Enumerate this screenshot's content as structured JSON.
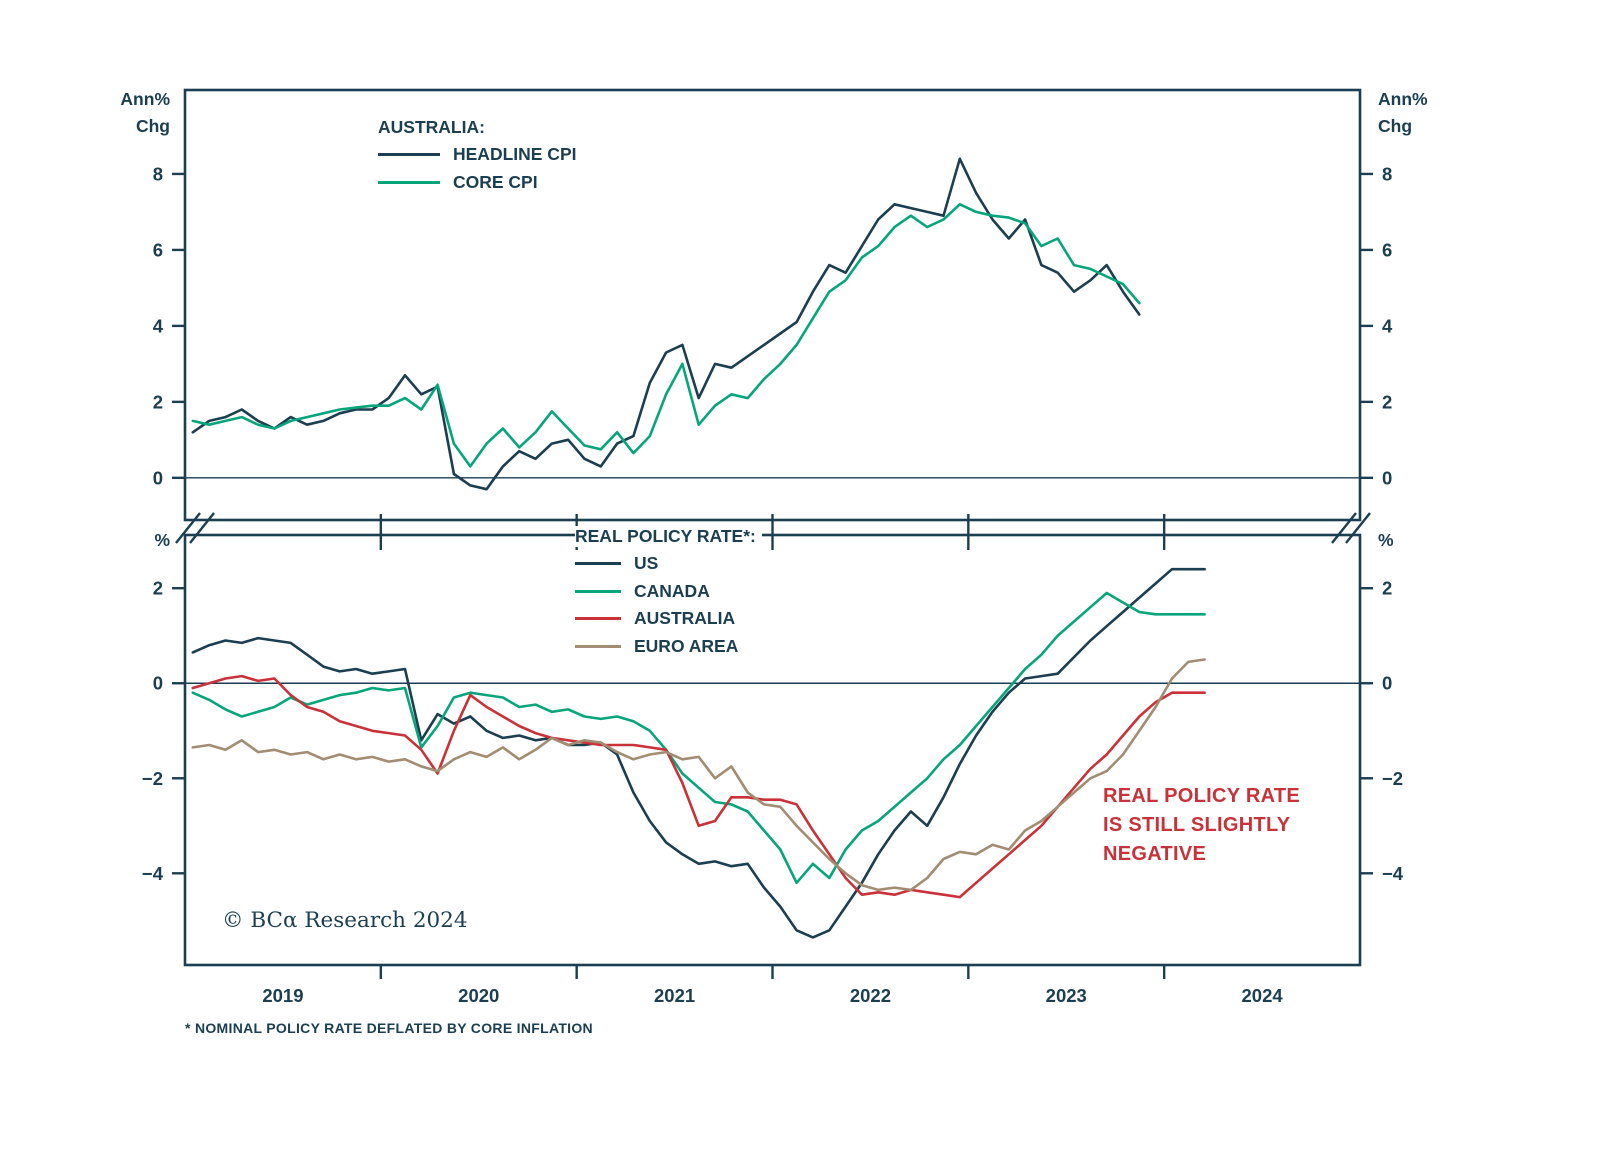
{
  "meta": {
    "copyright": "© BCα Research 2024",
    "footnote": "* NOMINAL POLICY RATE DEFLATED BY CORE INFLATION"
  },
  "colors": {
    "navy": "#1B3E50",
    "green": "#07A57C",
    "red": "#C93238",
    "tan": "#A28C72"
  },
  "labels": {
    "ann_line1": "Ann%",
    "ann_line2": "Chg",
    "pct": "%"
  },
  "x_axis": {
    "xlim": [
      2019,
      2025
    ],
    "tick_years": [
      2020,
      2021,
      2022,
      2023,
      2024
    ],
    "label_years": [
      2019,
      2020,
      2021,
      2022,
      2023,
      2024
    ],
    "labels": [
      "2019",
      "2020",
      "2021",
      "2022",
      "2023",
      "2024"
    ]
  },
  "chart_data": [
    {
      "type": "line",
      "title": "AUSTRALIA:",
      "y_axis_label": "Ann% Chg",
      "ylim": [
        -1.11,
        10.21
      ],
      "y_ticks": [
        0,
        2,
        4,
        6,
        8
      ],
      "x_start": 2019.04,
      "x_step": 0.08333,
      "x_unit": "monthly, year-over-year % change",
      "legend_position": "inside-top-left",
      "series": [
        {
          "name": "HEADLINE CPI",
          "color_key": "navy",
          "values": [
            1.2,
            1.5,
            1.6,
            1.8,
            1.5,
            1.3,
            1.6,
            1.4,
            1.5,
            1.7,
            1.8,
            1.8,
            2.1,
            2.7,
            2.2,
            2.4,
            0.1,
            -0.2,
            -0.3,
            0.3,
            0.7,
            0.5,
            0.9,
            1.0,
            0.5,
            0.3,
            0.9,
            1.1,
            2.5,
            3.3,
            3.5,
            2.1,
            3.0,
            2.9,
            3.2,
            3.5,
            3.8,
            4.1,
            4.9,
            5.6,
            5.4,
            6.1,
            6.8,
            7.2,
            7.1,
            7.0,
            6.9,
            8.4,
            7.5,
            6.8,
            6.3,
            6.8,
            5.6,
            5.4,
            4.9,
            5.2,
            5.6,
            4.9,
            4.3
          ]
        },
        {
          "name": "CORE CPI",
          "color_key": "green",
          "values": [
            1.5,
            1.4,
            1.5,
            1.6,
            1.4,
            1.3,
            1.5,
            1.6,
            1.7,
            1.8,
            1.85,
            1.9,
            1.9,
            2.1,
            1.8,
            2.45,
            0.9,
            0.3,
            0.9,
            1.3,
            0.8,
            1.2,
            1.75,
            1.3,
            0.85,
            0.75,
            1.2,
            0.65,
            1.1,
            2.2,
            3.0,
            1.4,
            1.9,
            2.2,
            2.1,
            2.6,
            3.0,
            3.5,
            4.2,
            4.9,
            5.2,
            5.8,
            6.1,
            6.6,
            6.9,
            6.6,
            6.8,
            7.2,
            7.0,
            6.9,
            6.85,
            6.7,
            6.1,
            6.3,
            5.6,
            5.5,
            5.3,
            5.1,
            4.6
          ]
        }
      ]
    },
    {
      "type": "line",
      "title": "REAL POLICY RATE*:",
      "y_axis_label": "%",
      "ylim": [
        -5.93,
        3.12
      ],
      "y_ticks": [
        -4,
        -2,
        0,
        2
      ],
      "x_start": 2019.04,
      "x_step": 0.08333,
      "x_unit": "monthly, percent",
      "legend_position": "inside-top-left",
      "annotation_lines": [
        "REAL POLICY RATE",
        "IS STILL SLIGHTLY",
        "NEGATIVE"
      ],
      "series": [
        {
          "name": "US",
          "color_key": "navy",
          "values": [
            0.65,
            0.8,
            0.9,
            0.85,
            0.95,
            0.9,
            0.85,
            0.6,
            0.35,
            0.25,
            0.3,
            0.2,
            0.25,
            0.3,
            -1.2,
            -0.65,
            -0.85,
            -0.7,
            -1.0,
            -1.15,
            -1.1,
            -1.2,
            -1.15,
            -1.3,
            -1.3,
            -1.25,
            -1.5,
            -2.3,
            -2.9,
            -3.35,
            -3.6,
            -3.8,
            -3.75,
            -3.85,
            -3.8,
            -4.3,
            -4.7,
            -5.2,
            -5.35,
            -5.2,
            -4.7,
            -4.2,
            -3.6,
            -3.1,
            -2.7,
            -3.0,
            -2.4,
            -1.7,
            -1.1,
            -0.6,
            -0.2,
            0.1,
            0.15,
            0.2,
            0.55,
            0.9,
            1.2,
            1.5,
            1.8,
            2.1,
            2.4,
            2.4,
            2.4
          ]
        },
        {
          "name": "CANADA",
          "color_key": "green",
          "values": [
            -0.2,
            -0.35,
            -0.55,
            -0.7,
            -0.6,
            -0.5,
            -0.3,
            -0.45,
            -0.35,
            -0.25,
            -0.2,
            -0.1,
            -0.15,
            -0.1,
            -1.35,
            -0.9,
            -0.3,
            -0.2,
            -0.25,
            -0.3,
            -0.5,
            -0.45,
            -0.6,
            -0.55,
            -0.7,
            -0.75,
            -0.7,
            -0.8,
            -1.0,
            -1.4,
            -1.9,
            -2.2,
            -2.5,
            -2.55,
            -2.7,
            -3.1,
            -3.5,
            -4.2,
            -3.8,
            -4.1,
            -3.5,
            -3.1,
            -2.9,
            -2.6,
            -2.3,
            -2.0,
            -1.6,
            -1.3,
            -0.9,
            -0.5,
            -0.1,
            0.3,
            0.6,
            1.0,
            1.3,
            1.6,
            1.9,
            1.7,
            1.5,
            1.45,
            1.45,
            1.45,
            1.45
          ]
        },
        {
          "name": "AUSTRALIA",
          "color_key": "red",
          "values": [
            -0.1,
            0.0,
            0.1,
            0.15,
            0.05,
            0.1,
            -0.25,
            -0.5,
            -0.6,
            -0.8,
            -0.9,
            -1.0,
            -1.05,
            -1.1,
            -1.4,
            -1.9,
            -1.0,
            -0.25,
            -0.5,
            -0.7,
            -0.9,
            -1.05,
            -1.15,
            -1.2,
            -1.25,
            -1.3,
            -1.3,
            -1.3,
            -1.35,
            -1.4,
            -2.1,
            -3.0,
            -2.9,
            -2.4,
            -2.4,
            -2.45,
            -2.45,
            -2.55,
            -3.1,
            -3.6,
            -4.1,
            -4.45,
            -4.4,
            -4.45,
            -4.35,
            -4.4,
            -4.45,
            -4.5,
            -4.2,
            -3.9,
            -3.6,
            -3.3,
            -3.0,
            -2.6,
            -2.2,
            -1.8,
            -1.5,
            -1.1,
            -0.7,
            -0.4,
            -0.2,
            -0.2,
            -0.2
          ]
        },
        {
          "name": "EURO AREA",
          "color_key": "tan",
          "values": [
            -1.35,
            -1.3,
            -1.4,
            -1.2,
            -1.45,
            -1.4,
            -1.5,
            -1.45,
            -1.6,
            -1.5,
            -1.6,
            -1.55,
            -1.65,
            -1.6,
            -1.75,
            -1.85,
            -1.6,
            -1.45,
            -1.55,
            -1.35,
            -1.6,
            -1.4,
            -1.15,
            -1.3,
            -1.2,
            -1.25,
            -1.45,
            -1.6,
            -1.5,
            -1.45,
            -1.6,
            -1.55,
            -2.0,
            -1.75,
            -2.3,
            -2.55,
            -2.6,
            -3.0,
            -3.35,
            -3.7,
            -4.0,
            -4.25,
            -4.35,
            -4.3,
            -4.35,
            -4.1,
            -3.7,
            -3.55,
            -3.6,
            -3.4,
            -3.5,
            -3.1,
            -2.9,
            -2.6,
            -2.3,
            -2.0,
            -1.85,
            -1.5,
            -1.0,
            -0.5,
            0.1,
            0.45,
            0.5
          ]
        }
      ]
    }
  ]
}
